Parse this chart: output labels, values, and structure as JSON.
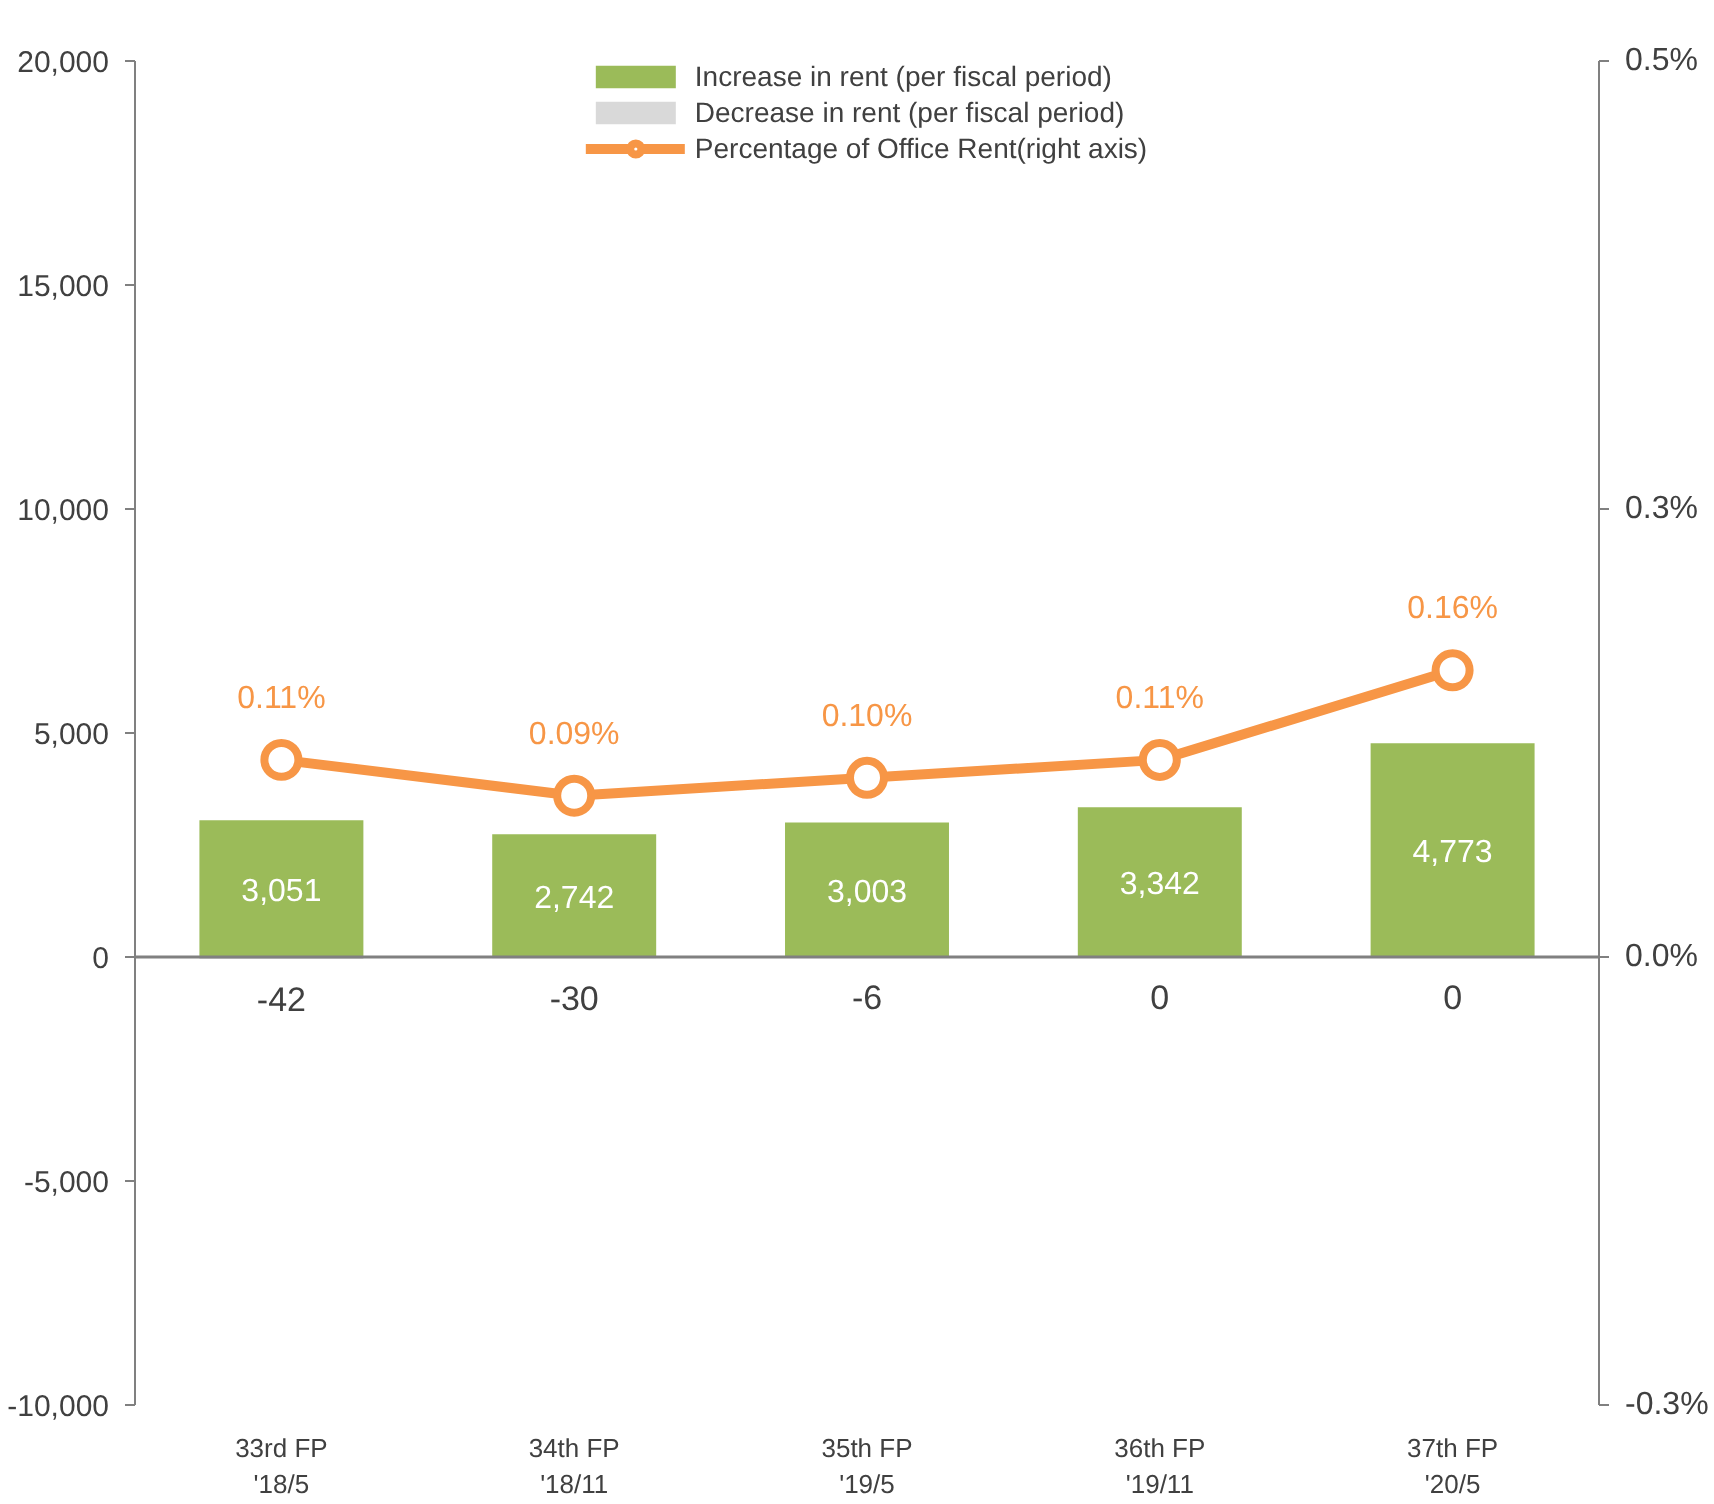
{
  "chart_data": {
    "type": "bar",
    "categories": [
      "33rd FP\n'18/5",
      "34th FP\n'18/11",
      "35th FP\n'19/5",
      "36th FP\n'19/11",
      "37th FP\n'20/5"
    ],
    "series": [
      {
        "name": "Increase in rent (per fiscal period)",
        "color": "#9bbb59",
        "values": [
          3051,
          2742,
          3003,
          3342,
          4773
        ],
        "value_labels": [
          "3,051",
          "2,742",
          "3,003",
          "3,342",
          "4,773"
        ]
      },
      {
        "name": "Decrease in rent (per fiscal period)",
        "color": "#d9d9d9",
        "values": [
          -42,
          -30,
          -6,
          0,
          0
        ],
        "value_labels": [
          "-42",
          "-30",
          "-6",
          "0",
          "0"
        ]
      },
      {
        "name": "Percentage of Office Rent(right axis)",
        "color": "#f79646",
        "type": "line",
        "axis": "y2",
        "marker": "circle",
        "values": [
          0.11,
          0.09,
          0.1,
          0.11,
          0.16
        ],
        "value_labels": [
          "0.11%",
          "0.09%",
          "0.10%",
          "0.11%",
          "0.16%"
        ]
      }
    ],
    "ylim": [
      -10000,
      20000
    ],
    "yticks": [
      {
        "value": -10000,
        "label": "-10,000"
      },
      {
        "value": -5000,
        "label": "-5,000"
      },
      0,
      {
        "value": 5000,
        "label": "5,000"
      },
      {
        "value": 10000,
        "label": "10,000"
      },
      {
        "value": 15000,
        "label": "15,000"
      },
      {
        "value": 20000,
        "label": "20,000"
      }
    ],
    "y2lim": [
      -0.25,
      0.5
    ],
    "y2ticks": [
      {
        "value": -0.25,
        "label": "-0.3%"
      },
      {
        "value": 0,
        "label": "0.0%"
      },
      {
        "value": 0.25,
        "label": "0.3%"
      },
      {
        "value": 0.5,
        "label": "0.5%"
      }
    ],
    "ref_lines": [
      {
        "axis": "y",
        "value": 0,
        "color": "#808080"
      }
    ],
    "grid": false,
    "legend": "top"
  }
}
